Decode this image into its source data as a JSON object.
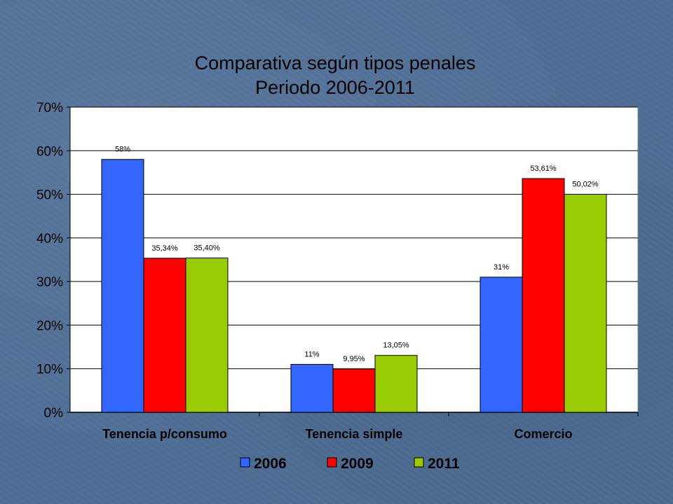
{
  "slide": {
    "background_color": "#4f6e95"
  },
  "chart_data": {
    "type": "bar",
    "title": "Comparativa según tipos penales",
    "subtitle": "Periodo 2006-2011",
    "categories": [
      "Tenencia p/consumo",
      "Tenencia simple",
      "Comercio"
    ],
    "series": [
      {
        "name": "2006",
        "color": "#3366ff",
        "values": [
          58,
          11,
          31
        ],
        "labels": [
          "58%",
          "11%",
          "31%"
        ]
      },
      {
        "name": "2009",
        "color": "#ff0000",
        "values": [
          35.34,
          9.95,
          53.61
        ],
        "labels": [
          "35,34%",
          "9,95%",
          "53,61%"
        ]
      },
      {
        "name": "2011",
        "color": "#99cc00",
        "values": [
          35.4,
          13.05,
          50.02
        ],
        "labels": [
          "35,40%",
          "13,05%",
          "50,02%"
        ]
      }
    ],
    "ylim": [
      0,
      70
    ],
    "yticks": [
      0,
      10,
      20,
      30,
      40,
      50,
      60,
      70
    ],
    "ytick_labels": [
      "0%",
      "10%",
      "20%",
      "30%",
      "40%",
      "50%",
      "60%",
      "70%"
    ],
    "grid": true,
    "legend_position": "bottom",
    "plot_background": "#ffffff"
  }
}
